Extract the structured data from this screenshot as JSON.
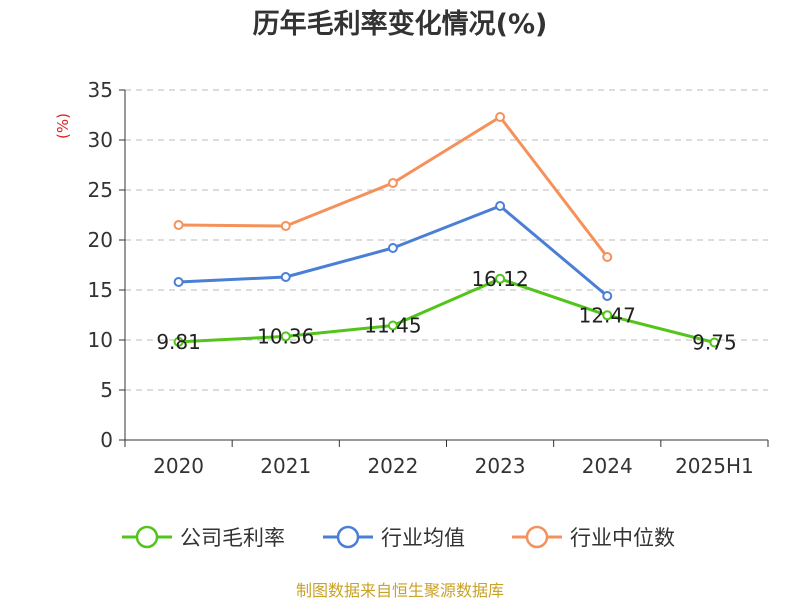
{
  "chart_data": {
    "type": "line",
    "title": "历年毛利率变化情况(%)",
    "ylabel": "(%)",
    "categories": [
      "2020",
      "2021",
      "2022",
      "2023",
      "2024",
      "2025H1"
    ],
    "ylim": [
      0,
      35
    ],
    "yticks": [
      "0",
      "5",
      "10",
      "15",
      "20",
      "25",
      "30",
      "35"
    ],
    "grid": true,
    "legend_position": "bottom",
    "series": [
      {
        "name": "公司毛利率",
        "color": "#52c41a",
        "values": [
          9.81,
          10.36,
          11.45,
          16.12,
          12.47,
          9.75
        ],
        "labels": [
          "9.81",
          "10.36",
          "11.45",
          "16.12",
          "12.47",
          "9.75"
        ]
      },
      {
        "name": "行业均值",
        "color": "#4a7fd6",
        "values": [
          15.8,
          16.3,
          19.2,
          23.4,
          14.4,
          null
        ]
      },
      {
        "name": "行业中位数",
        "color": "#f5915a",
        "values": [
          21.5,
          21.4,
          25.7,
          32.3,
          18.3,
          null
        ]
      }
    ]
  },
  "source": "制图数据来自恒生聚源数据库"
}
